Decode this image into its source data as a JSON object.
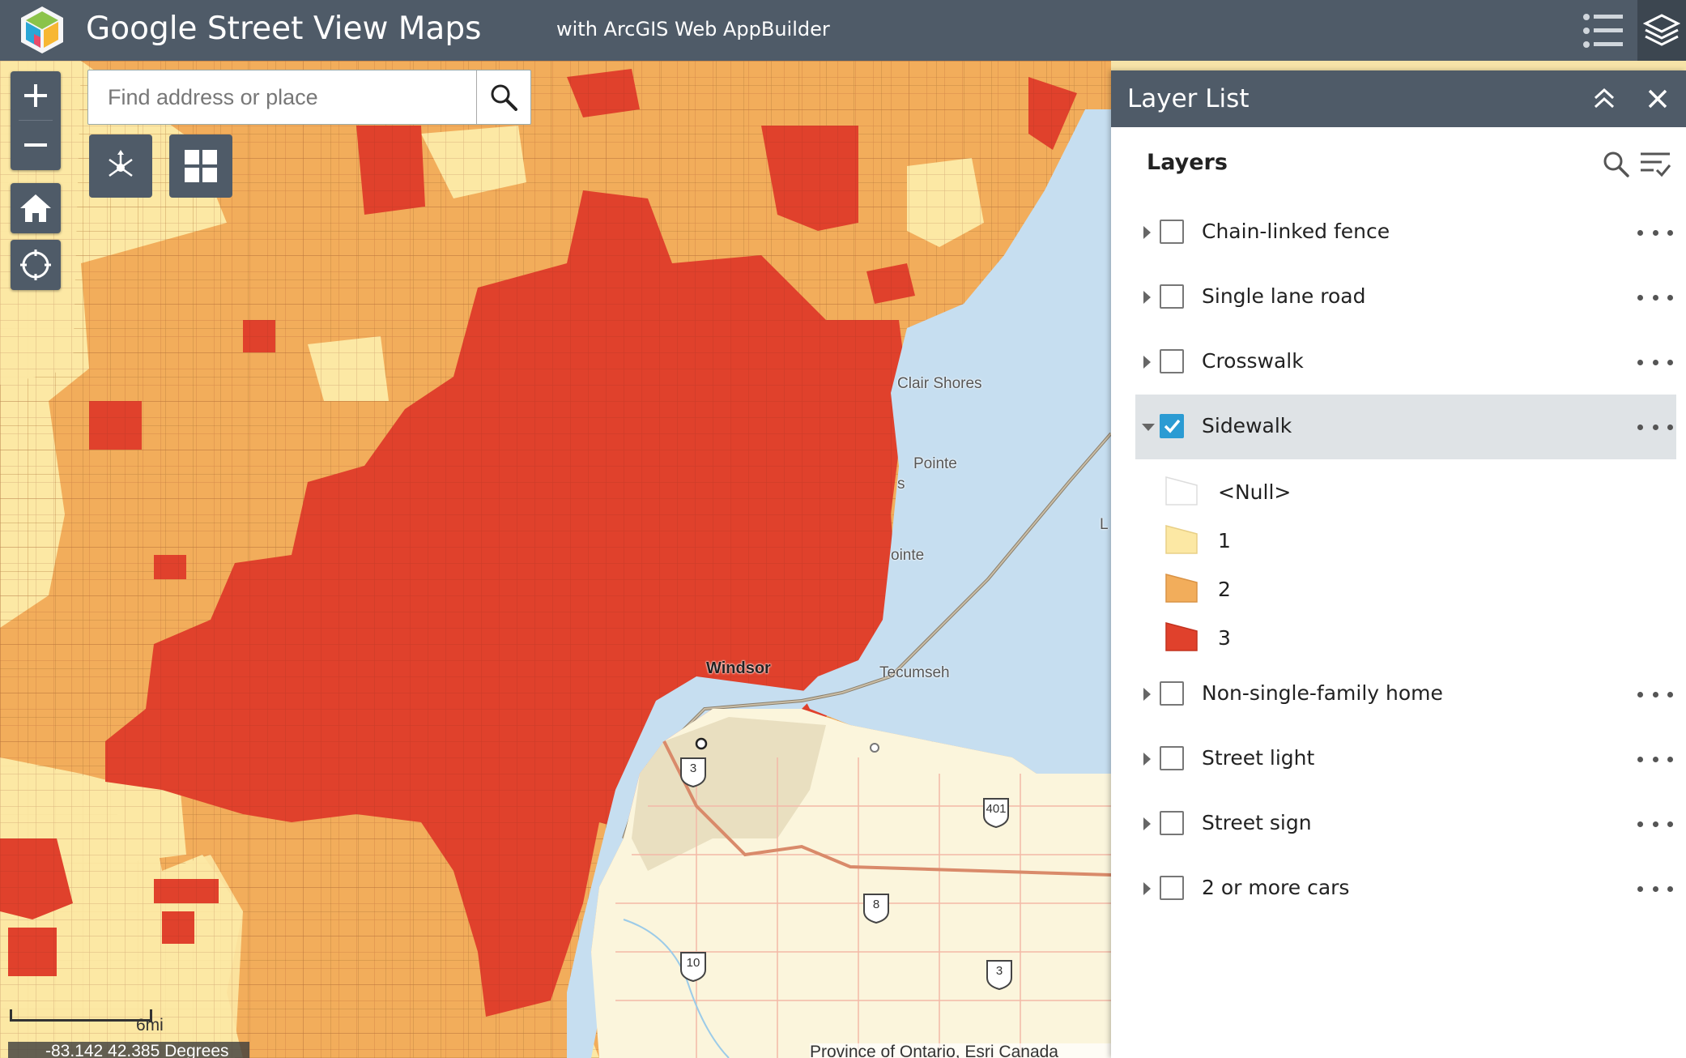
{
  "header": {
    "title": "Google Street View Maps",
    "subtitle": "with ArcGIS Web AppBuilder",
    "list_icon": "list-icon",
    "layers_icon": "layers-icon"
  },
  "search": {
    "placeholder": "Find address or place",
    "value": ""
  },
  "map": {
    "place_labels": [
      "Clair Shores",
      "Pointe",
      "ointe",
      "s",
      "Windsor",
      "Tecumseh",
      "L"
    ],
    "road_shields": [
      "3",
      "401",
      "8",
      "10",
      "3"
    ],
    "scale_label": "6mi",
    "coordinates": "-83.142 42.385 Degrees",
    "attribution": "Province of Ontario, Esri Canada"
  },
  "panel": {
    "title": "Layer List",
    "heading": "Layers",
    "layers": [
      {
        "label": "Chain-linked fence",
        "checked": false
      },
      {
        "label": "Single lane road",
        "checked": false
      },
      {
        "label": "Crosswalk",
        "checked": false
      },
      {
        "label": "Sidewalk",
        "checked": true,
        "expanded": true
      },
      {
        "label": "Non-single-family home",
        "checked": false
      },
      {
        "label": "Street light",
        "checked": false
      },
      {
        "label": "Street sign",
        "checked": false
      },
      {
        "label": "2 or more cars",
        "checked": false
      }
    ],
    "legend": [
      {
        "label": "<Null>",
        "color": "#ffffff"
      },
      {
        "label": "1",
        "color": "#fce8a4"
      },
      {
        "label": "2",
        "color": "#f2ad5b"
      },
      {
        "label": "3",
        "color": "#e0412c"
      }
    ]
  },
  "colors": {
    "header_bg": "#4f5b68",
    "water": "#c6def0",
    "class1": "#fce8a4",
    "class2": "#f2ad5b",
    "class3": "#e0412c",
    "check_accent": "#2b9bd3"
  }
}
